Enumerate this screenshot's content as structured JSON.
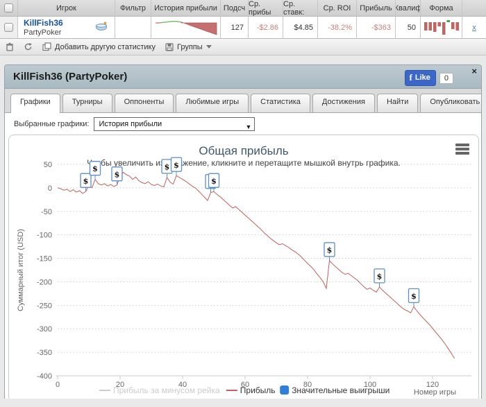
{
  "table": {
    "headers": [
      "Игрок",
      "Фильтр",
      "История прибыли",
      "Подсч",
      "Ср. прибы",
      "Ср. ставк:",
      "Ср. ROI",
      "Прибыль",
      "Квалиф",
      "Форма"
    ],
    "row": {
      "player": "KillFish36",
      "site": "PartyPoker",
      "count": "127",
      "avg_profit": "-$2.86",
      "avg_stake": "$4.85",
      "avg_roi": "-38.2%",
      "profit": "-$363",
      "qualified": "50",
      "remove_label": "x",
      "sparkline_values": [
        0,
        -3,
        2,
        4,
        6,
        8,
        9,
        7,
        5,
        -10,
        -45,
        -85,
        -120,
        -155,
        -190,
        -225,
        -260,
        -295,
        -330,
        -363
      ],
      "form_bars": [
        -12,
        -12,
        -14,
        -6,
        -18,
        3,
        -10,
        -12
      ]
    },
    "toolbar": {
      "add_label": "Добавить другую статистику",
      "groups_label": "Группы"
    }
  },
  "panel": {
    "title": "KillFish36 (PartyPoker)",
    "fb_like_label": "Like",
    "fb_like_count": "0",
    "close_glyph": "×",
    "fb_logo_glyph": "f",
    "select_arrow_glyph": "▼",
    "tabs": [
      {
        "label": "Графики",
        "active": true
      },
      {
        "label": "Турниры",
        "active": false
      },
      {
        "label": "Оппоненты",
        "active": false
      },
      {
        "label": "Любимые игры",
        "active": false
      },
      {
        "label": "Статистика",
        "active": false
      },
      {
        "label": "Достижения",
        "active": false
      },
      {
        "label": "Найти",
        "active": false
      },
      {
        "label": "Опубликовать",
        "active": false
      }
    ],
    "selector_label": "Выбранные графики:",
    "selector_value": "История прибыли"
  },
  "chart_data": {
    "type": "line",
    "title": "Общая прибыль",
    "subtitle": "Чтобы увеличить изображение, кликните и перетащите мышкой внутрь графика.",
    "xlabel": "Номер игры",
    "ylabel": "Суммарный итог (USD)",
    "xlim": [
      0,
      127
    ],
    "ylim": [
      -400,
      50
    ],
    "xticks": [
      0,
      20,
      40,
      60,
      80,
      100,
      120
    ],
    "yticks": [
      50,
      0,
      -50,
      -100,
      -150,
      -200,
      -250,
      -300,
      -350,
      -400
    ],
    "grid": "dotted-horizontal",
    "legend_position": "bottom",
    "title_color": "#3E576F",
    "subtitle_color": "#444444",
    "axis_text_color": "#666666",
    "series": [
      {
        "name": "Прибыль за минусом рейка",
        "kind": "line",
        "color": "#cccccc",
        "enabled": false,
        "values": []
      },
      {
        "name": "Прибыль",
        "kind": "line",
        "color": "#c0605e",
        "enabled": true,
        "values": [
          0,
          -2,
          -5,
          -3,
          -8,
          -4,
          -9,
          -6,
          -12,
          -8,
          5,
          0,
          18,
          9,
          6,
          9,
          4,
          7,
          3,
          6,
          24,
          33,
          28,
          25,
          18,
          23,
          15,
          11,
          9,
          13,
          7,
          5,
          8,
          4,
          2,
          22,
          12,
          8,
          26,
          22,
          18,
          14,
          9,
          4,
          0,
          -6,
          -13,
          -20,
          -27,
          -10,
          -8,
          -14,
          -19,
          -25,
          -31,
          -37,
          -43,
          -40,
          -46,
          -52,
          -58,
          -64,
          -70,
          -76,
          -82,
          -88,
          -95,
          -101,
          -107,
          -112,
          -117,
          -121,
          -119,
          -123,
          -127,
          -132,
          -136,
          -141,
          -147,
          -154,
          -161,
          -167,
          -174,
          -183,
          -191,
          -200,
          -214,
          -155,
          -162,
          -168,
          -174,
          -180,
          -184,
          -182,
          -187,
          -192,
          -197,
          -204,
          -210,
          -216,
          -213,
          -218,
          -222,
          -211,
          -218,
          -224,
          -230,
          -236,
          -242,
          -248,
          -254,
          -259,
          -262,
          -266,
          -253,
          -262,
          -270,
          -277,
          -284,
          -291,
          -299,
          -307,
          -315,
          -323,
          -332,
          -342,
          -352,
          -363
        ]
      },
      {
        "name": "Значительные выигрыши",
        "kind": "flags",
        "color": "#2f7ed8",
        "flag_border": "#5b8fc9",
        "symbol": "$",
        "games": [
          9,
          12,
          19,
          35,
          38,
          49,
          50,
          87,
          103,
          114
        ]
      }
    ]
  }
}
